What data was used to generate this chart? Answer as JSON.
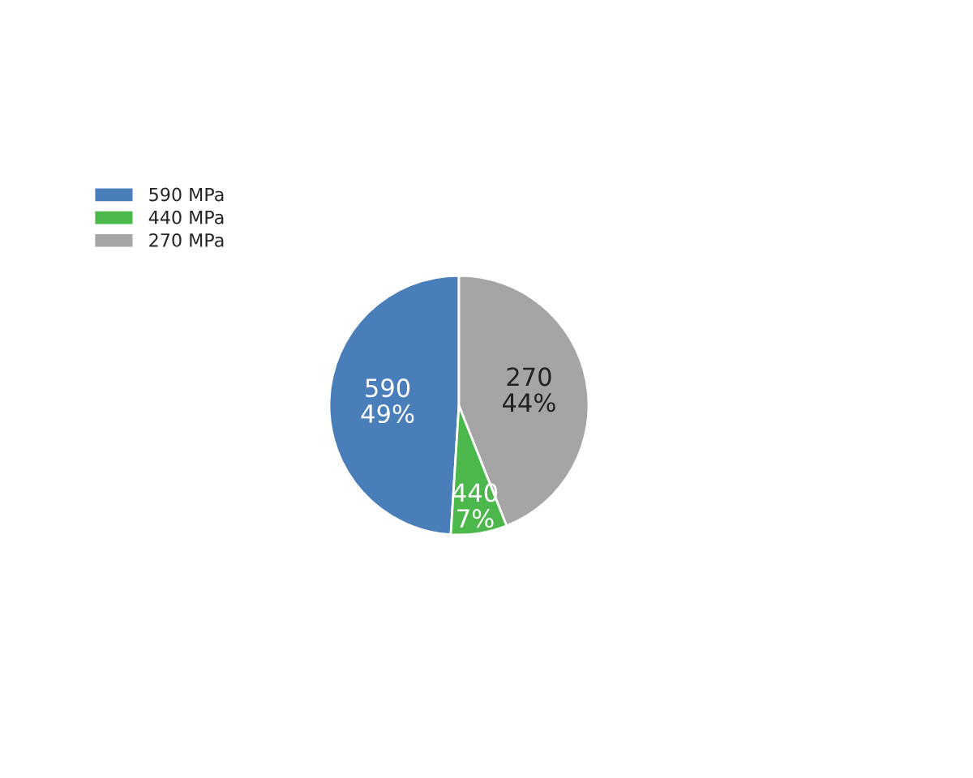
{
  "chart_data": {
    "type": "pie",
    "categories": [
      "590 MPa",
      "440 MPa",
      "270 MPa"
    ],
    "values": [
      49,
      7,
      44
    ],
    "colors": [
      "#4a7ebb",
      "#4cb84c",
      "#a5a5a5"
    ],
    "value_labels": [
      "590\n49%",
      "440\n7%",
      "270\n44%"
    ],
    "legend": "top left"
  }
}
